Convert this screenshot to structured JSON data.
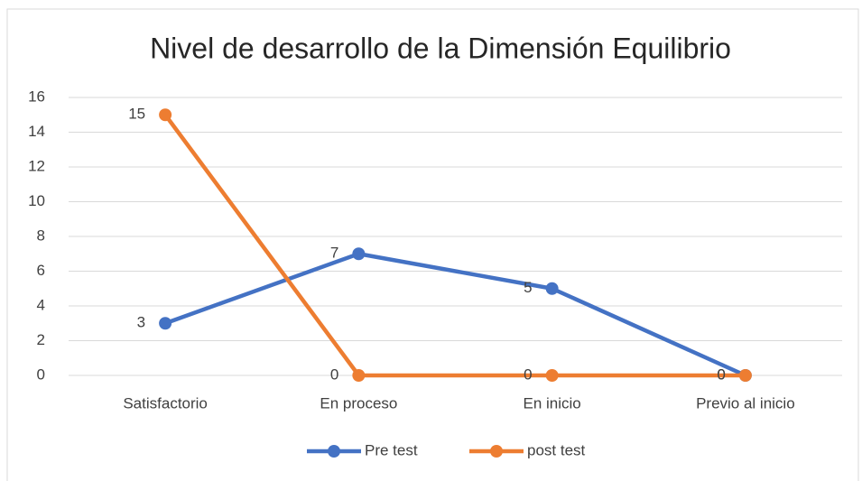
{
  "chart_data": {
    "type": "line",
    "title": "Nivel de desarrollo de la Dimensión Equilibrio",
    "categories": [
      "Satisfactorio",
      "En proceso",
      "En inicio",
      "Previo al inicio"
    ],
    "series": [
      {
        "name": "Pre test",
        "color": "#4472c4",
        "values": [
          3,
          7,
          5,
          0
        ]
      },
      {
        "name": "post test",
        "color": "#ed7d31",
        "values": [
          15,
          0,
          0,
          0
        ]
      }
    ],
    "ylim": [
      0,
      16
    ],
    "yticks": [
      0,
      2,
      4,
      6,
      8,
      10,
      12,
      14,
      16
    ],
    "grid": true,
    "legend": "bottom"
  }
}
